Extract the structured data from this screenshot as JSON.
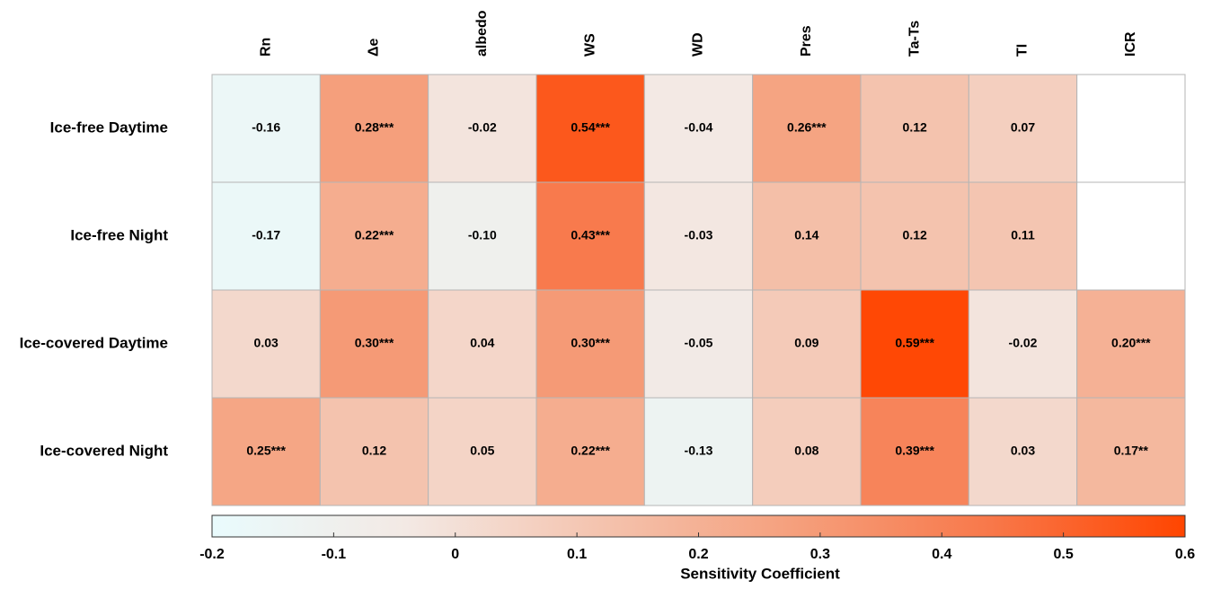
{
  "chart_data": {
    "type": "heatmap",
    "columns": [
      "Rn",
      "Δe",
      "albedo",
      "WS",
      "WD",
      "Pres",
      "Ta-Ts",
      "TI",
      "ICR"
    ],
    "rows": [
      "Ice-free Daytime",
      "Ice-free Night",
      "Ice-covered Daytime",
      "Ice-covered Night"
    ],
    "values": [
      [
        -0.16,
        0.28,
        -0.02,
        0.54,
        -0.04,
        0.26,
        0.12,
        0.07,
        null
      ],
      [
        -0.17,
        0.22,
        -0.1,
        0.43,
        -0.03,
        0.14,
        0.12,
        0.11,
        null
      ],
      [
        0.03,
        0.3,
        0.04,
        0.3,
        -0.05,
        0.09,
        0.59,
        -0.02,
        0.2
      ],
      [
        0.25,
        0.12,
        0.05,
        0.22,
        -0.13,
        0.08,
        0.39,
        0.03,
        0.17
      ]
    ],
    "value_labels": [
      [
        "-0.16",
        "0.28***",
        "-0.02",
        "0.54***",
        "-0.04",
        "0.26***",
        "0.12",
        "0.07",
        null
      ],
      [
        "-0.17",
        "0.22***",
        "-0.10",
        "0.43***",
        "-0.03",
        "0.14",
        "0.12",
        "0.11",
        null
      ],
      [
        "0.03",
        "0.30***",
        "0.04",
        "0.30***",
        "-0.05",
        "0.09",
        "0.59***",
        "-0.02",
        "0.20***"
      ],
      [
        "0.25***",
        "0.12",
        "0.05",
        "0.22***",
        "-0.13",
        "0.08",
        "0.39***",
        "0.03",
        "0.17**"
      ]
    ],
    "colormap": [
      "#e9fbfd",
      "#f3e9e4",
      "#f4c3ae",
      "#f59f7c",
      "#f8784a",
      "#ff4500"
    ],
    "colorbar": {
      "label": "Sensitivity Coefficient",
      "lim": [
        -0.2,
        0.6
      ],
      "ticks": [
        -0.2,
        -0.1,
        0,
        0.1,
        0.2,
        0.3,
        0.4,
        0.5,
        0.6
      ]
    }
  }
}
